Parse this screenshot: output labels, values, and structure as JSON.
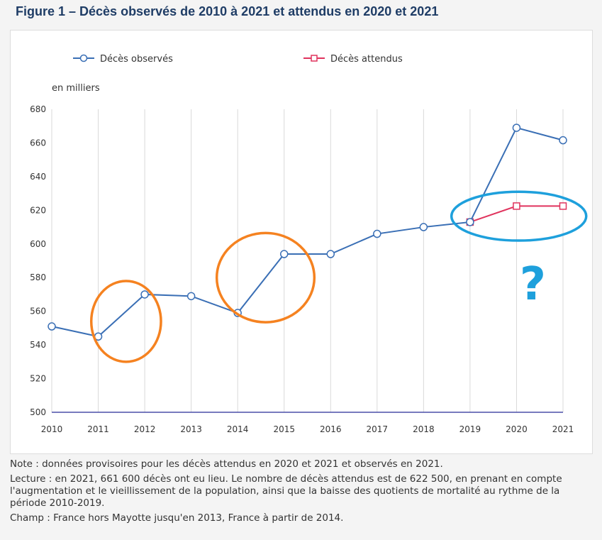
{
  "figure": {
    "title": "Figure 1 – Décès observés de 2010 à 2021 et attendus en 2020 et 2021",
    "unit_label": "en milliers",
    "annotation_mark": "?"
  },
  "chart_data": {
    "type": "line",
    "title": "Figure 1 – Décès observés de 2010 à 2021 et attendus en 2020 et 2021",
    "ylabel": "en milliers",
    "xlabel": "",
    "x": [
      2010,
      2011,
      2012,
      2013,
      2014,
      2015,
      2016,
      2017,
      2018,
      2019,
      2020,
      2021
    ],
    "ylim": [
      500,
      680
    ],
    "yticks": [
      500,
      520,
      540,
      560,
      580,
      600,
      620,
      640,
      660,
      680
    ],
    "grid": "vertical",
    "legend_position": "top",
    "series": [
      {
        "name": "Décès observés",
        "color": "#3a6fb5",
        "marker": "circle",
        "x": [
          2010,
          2011,
          2012,
          2013,
          2014,
          2015,
          2016,
          2017,
          2018,
          2019,
          2020,
          2021
        ],
        "values": [
          551,
          545,
          570,
          569,
          559,
          594,
          594,
          606,
          610,
          613,
          669,
          661.6
        ]
      },
      {
        "name": "Décès attendus",
        "color": "#e0335d",
        "marker": "square",
        "x": [
          2019,
          2020,
          2021
        ],
        "values": [
          613,
          622.5,
          622.5
        ]
      }
    ],
    "annotations": [
      {
        "shape": "ellipse",
        "color": "#f58220",
        "x_center": 2011.6,
        "y_center": 554,
        "x_radius": 0.75,
        "y_radius": 24
      },
      {
        "shape": "ellipse",
        "color": "#f58220",
        "x_center": 2014.6,
        "y_center": 580,
        "x_radius": 1.05,
        "y_radius": 26.5
      },
      {
        "shape": "ellipse",
        "color": "#1ea0dc",
        "x_center": 2020.05,
        "y_center": 616.5,
        "x_radius": 1.45,
        "y_radius": 14.5
      },
      {
        "shape": "text",
        "color": "#1ea0dc",
        "text": "?",
        "x": 2020.35,
        "y": 567
      }
    ]
  },
  "notes": {
    "note": "Note : données provisoires pour les décès attendus en 2020 et 2021 et observés en 2021.",
    "lecture": "Lecture : en 2021, 661 600 décès ont eu lieu. Le nombre de décès attendus est de 622 500, en prenant en compte l'augmentation et le vieillissement de la population, ainsi que la baisse des quotients de mortalité au rythme de la période 2010-2019.",
    "champ": "Champ : France hors Mayotte jusqu'en 2013, France à partir de 2014."
  }
}
